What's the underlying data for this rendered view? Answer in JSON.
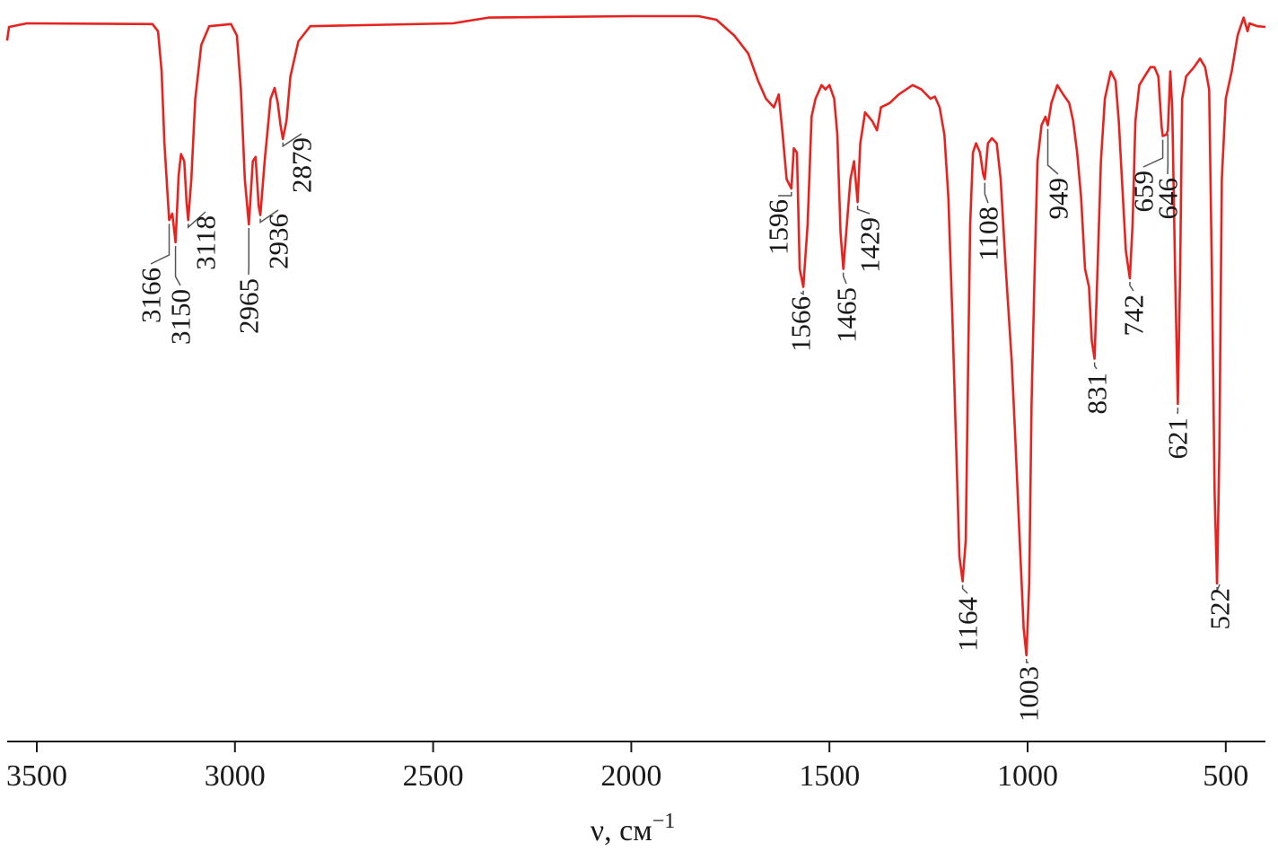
{
  "chart_data": {
    "type": "line",
    "title": "",
    "xlabel": "ν, см",
    "xlabel_superscript": "−1",
    "ylabel": "",
    "xlim": [
      3575,
      398
    ],
    "x_reversed": true,
    "ylim": [
      0,
      105
    ],
    "grid": false,
    "legend": "none",
    "x_ticks": [
      3500,
      3000,
      2500,
      2000,
      1500,
      1000,
      500
    ],
    "x_tick_labels": [
      "3500",
      "3000",
      "2500",
      "2000",
      "1500",
      "1000",
      "500"
    ],
    "line_color": "#e8231f",
    "leader_color": "#555555",
    "series": [
      {
        "x": [
          3575,
          3570,
          3525,
          3208,
          3194,
          3185,
          3178,
          3166,
          3158,
          3150,
          3142,
          3136,
          3128,
          3122,
          3118,
          3110,
          3100,
          3085,
          3065,
          3010,
          2995,
          2985,
          2975,
          2965,
          2955,
          2948,
          2940,
          2936,
          2925,
          2910,
          2900,
          2892,
          2885,
          2879,
          2870,
          2860,
          2840,
          2810,
          2450,
          2360,
          2000,
          1830,
          1785,
          1740,
          1705,
          1680,
          1660,
          1640,
          1628,
          1618,
          1608,
          1596,
          1590,
          1582,
          1575,
          1566,
          1555,
          1545,
          1535,
          1520,
          1510,
          1500,
          1488,
          1480,
          1472,
          1465,
          1456,
          1447,
          1438,
          1429,
          1422,
          1410,
          1392,
          1380,
          1370,
          1348,
          1325,
          1290,
          1268,
          1245,
          1234,
          1222,
          1210,
          1200,
          1190,
          1180,
          1172,
          1164,
          1156,
          1150,
          1145,
          1138,
          1130,
          1120,
          1112,
          1108,
          1100,
          1090,
          1078,
          1068,
          1055,
          1040,
          1030,
          1020,
          1010,
          1003,
          996,
          990,
          982,
          975,
          965,
          955,
          949,
          940,
          925,
          910,
          895,
          885,
          875,
          865,
          855,
          845,
          838,
          831,
          825,
          815,
          805,
          790,
          778,
          770,
          762,
          752,
          742,
          735,
          728,
          718,
          705,
          690,
          680,
          670,
          662,
          659,
          650,
          646,
          640,
          635,
          628,
          621,
          615,
          610,
          600,
          580,
          565,
          552,
          542,
          535,
          528,
          522,
          516,
          510,
          500,
          485,
          470,
          455,
          445,
          440,
          420,
          400
        ],
        "y": [
          97.6,
          99.5,
          100,
          99.9,
          98.9,
          93.3,
          83.3,
          72.6,
          73.5,
          69.5,
          78.9,
          81.8,
          80.8,
          75.1,
          72.6,
          78.3,
          89.5,
          97,
          99.6,
          99.9,
          98.3,
          90.8,
          78.3,
          72,
          80.8,
          81.4,
          74.5,
          73.3,
          80.8,
          89.5,
          91,
          88.9,
          85.8,
          83.9,
          86.4,
          92.6,
          97.5,
          99.6,
          100,
          100.8,
          101,
          101,
          100.5,
          98.3,
          95.8,
          92,
          89.5,
          88.3,
          90.1,
          84.5,
          78.3,
          77,
          82.6,
          82,
          65.8,
          63.3,
          72,
          87,
          89.5,
          91.4,
          90.8,
          91.4,
          89.5,
          84.5,
          70.8,
          65.8,
          72,
          78.3,
          80.8,
          75.1,
          83.3,
          87.6,
          86.4,
          85.1,
          88.3,
          88.9,
          90.1,
          91.4,
          90.8,
          89.5,
          89.8,
          88.3,
          84.5,
          75.8,
          59.5,
          40.8,
          25.8,
          22.3,
          28,
          53,
          72,
          82,
          83.3,
          82,
          79,
          78.3,
          83.3,
          84,
          83.3,
          78.3,
          65.8,
          53,
          40.8,
          28,
          15.8,
          12,
          22,
          47,
          65.8,
          80.8,
          85.8,
          87,
          85.8,
          88.9,
          91.4,
          90.1,
          88.9,
          86.4,
          82,
          75.8,
          65.8,
          63.3,
          55.8,
          53.3,
          63.3,
          80.8,
          89.5,
          93.3,
          92,
          86.4,
          78.3,
          68.3,
          64.5,
          72,
          86.4,
          91.4,
          92.6,
          93.9,
          93.9,
          92.6,
          85.6,
          84.3,
          84.5,
          85.1,
          93.3,
          88,
          65.8,
          47,
          65.8,
          89.5,
          92.6,
          93.9,
          95.1,
          93.9,
          90.8,
          65.8,
          34.5,
          22,
          40.8,
          78.3,
          89.5,
          93.3,
          98.3,
          100.8,
          98.9,
          100,
          99.6,
          99.5
        ]
      }
    ],
    "annotations": [
      "3166",
      "3150",
      "3118",
      "2965",
      "2936",
      "2879",
      "1596",
      "1566",
      "1465",
      "1429",
      "1164",
      "1108",
      "1003",
      "949",
      "831",
      "742",
      "659",
      "646",
      "621",
      "522"
    ]
  }
}
